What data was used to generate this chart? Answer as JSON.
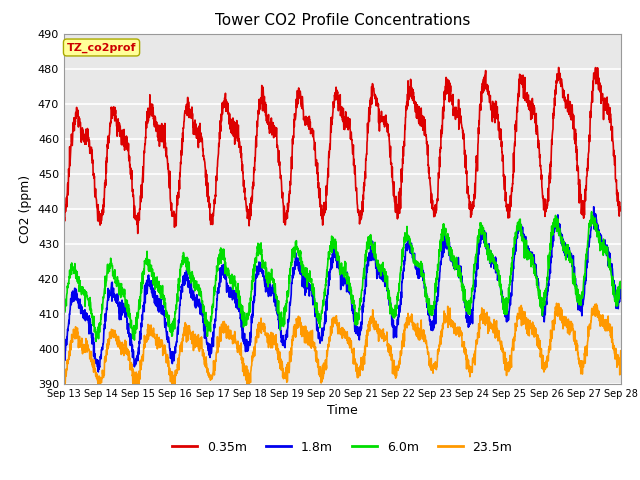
{
  "title": "Tower CO2 Profile Concentrations",
  "xlabel": "Time",
  "ylabel": "CO2 (ppm)",
  "ylim": [
    390,
    490
  ],
  "annotation_text": "TZ_co2prof",
  "annotation_color": "#cc0000",
  "annotation_bg": "#ffff99",
  "annotation_border": "#aaaa00",
  "fig_bg": "#ffffff",
  "plot_bg": "#e8e8e8",
  "grid_color": "#ffffff",
  "series": [
    {
      "label": "0.35m",
      "color": "#dd0000",
      "lw": 1.2
    },
    {
      "label": "1.8m",
      "color": "#0000ee",
      "lw": 1.2
    },
    {
      "label": "6.0m",
      "color": "#00dd00",
      "lw": 1.2
    },
    {
      "label": "23.5m",
      "color": "#ff9900",
      "lw": 1.2
    }
  ],
  "xtick_labels": [
    "Sep 13",
    "Sep 14",
    "Sep 15",
    "Sep 16",
    "Sep 17",
    "Sep 18",
    "Sep 19",
    "Sep 20",
    "Sep 21",
    "Sep 22",
    "Sep 23",
    "Sep 24",
    "Sep 25",
    "Sep 26",
    "Sep 27",
    "Sep 28"
  ],
  "ytick_values": [
    390,
    400,
    410,
    420,
    430,
    440,
    450,
    460,
    470,
    480,
    490
  ]
}
